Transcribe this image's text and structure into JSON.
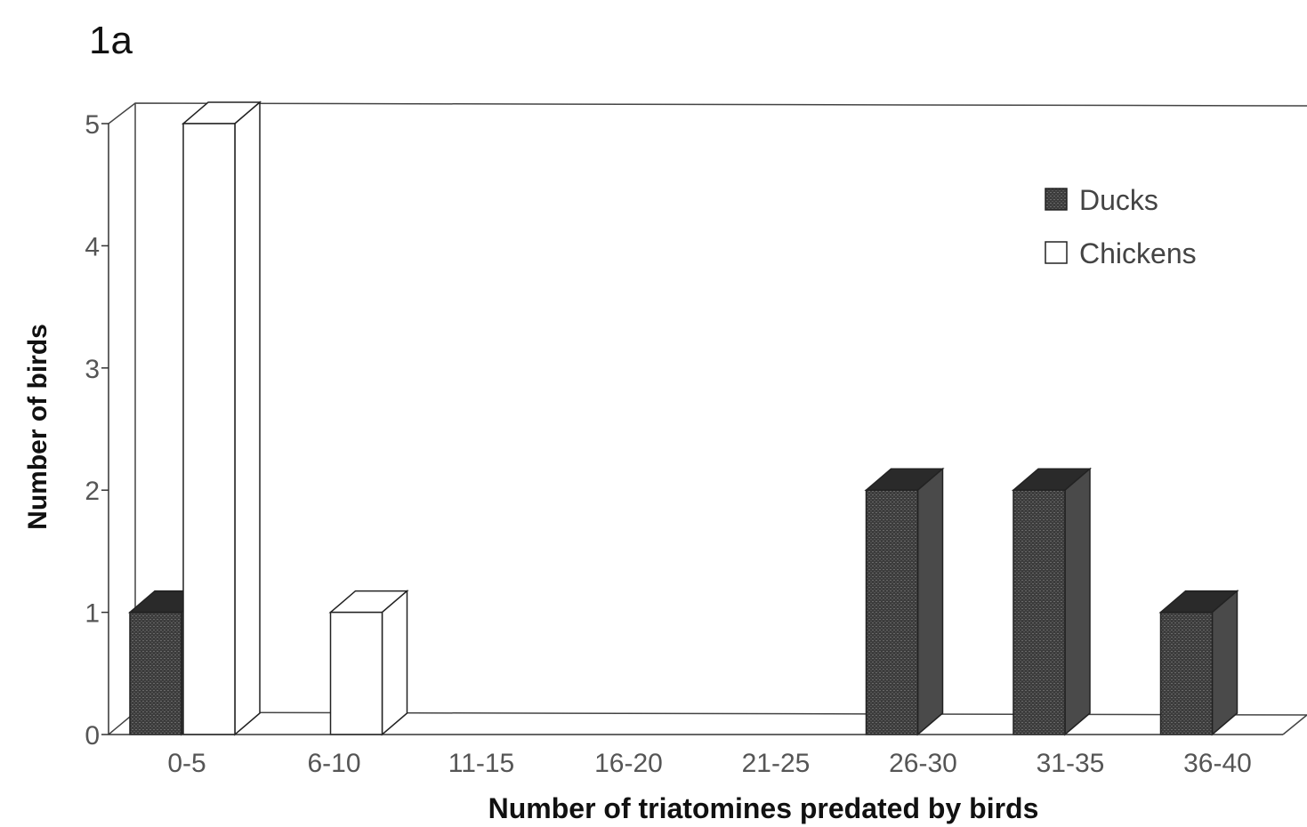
{
  "chart_data": {
    "type": "bar",
    "panel_label": "1a",
    "categories": [
      "0-5",
      "6-10",
      "11-15",
      "16-20",
      "21-25",
      "26-30",
      "31-35",
      "36-40"
    ],
    "series": [
      {
        "name": "Ducks",
        "values": [
          1,
          0,
          0,
          0,
          0,
          2,
          2,
          1
        ],
        "color": "#3a3a3a"
      },
      {
        "name": "Chickens",
        "values": [
          5,
          1,
          0,
          0,
          0,
          0,
          0,
          0
        ],
        "color": "#ffffff"
      }
    ],
    "xlabel": "Number of triatomines predated by birds",
    "ylabel": "Number of birds",
    "ylim": [
      0,
      5
    ],
    "yticks": [
      "0",
      "1",
      "2",
      "3",
      "4",
      "5"
    ],
    "legend_position": "top-right",
    "style": "3d",
    "grid": false
  }
}
